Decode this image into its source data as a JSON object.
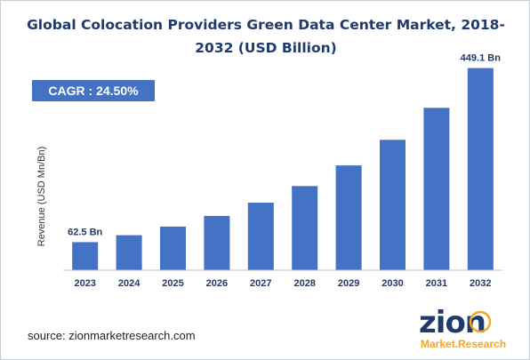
{
  "page": {
    "title_line1": "Global Colocation Providers Green Data Center Market, 2018-",
    "title_line2": "2032 (USD Billion)",
    "cagr_label": "CAGR : 24.50%",
    "source": "source: zionmarketresearch.com"
  },
  "logo": {
    "text_main": "zion",
    "text_sub": "Market.Research",
    "colors": {
      "main": "#1f3a6b",
      "accent": "#f5a623",
      "sub": "#f5a623"
    }
  },
  "chart_data": {
    "type": "bar",
    "title": "Global Colocation Providers Green Data Center Market, 2018-2032 (USD Billion)",
    "ylabel": "Revenue (USD Mn/Bn)",
    "xlabel": "",
    "categories": [
      "2023",
      "2024",
      "2025",
      "2026",
      "2027",
      "2028",
      "2029",
      "2030",
      "2031",
      "2032"
    ],
    "values": [
      62.5,
      77.8,
      96.9,
      120.6,
      150.2,
      187.0,
      232.8,
      289.8,
      360.8,
      449.1
    ],
    "data_labels": [
      {
        "index": 0,
        "text": "62.5  Bn"
      },
      {
        "index": 9,
        "text": "449.1 Bn"
      }
    ],
    "ylim": [
      0,
      480
    ],
    "grid": false,
    "legend": "none",
    "bar_color": "#4472c4"
  }
}
